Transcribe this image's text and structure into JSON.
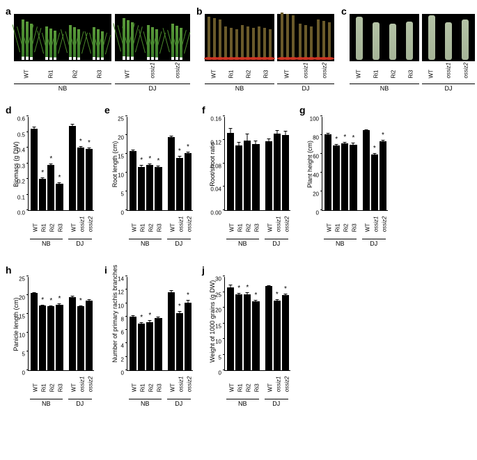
{
  "panels": {
    "a": {
      "label": "a"
    },
    "b": {
      "label": "b"
    },
    "c": {
      "label": "c"
    }
  },
  "genotypes_nb": [
    "WT",
    "Ri1",
    "Ri2",
    "Ri3"
  ],
  "genotypes_dj": [
    "WT",
    "ossiz1",
    "ossiz2"
  ],
  "groups": {
    "nb": "NB",
    "dj": "DJ"
  },
  "charts": {
    "d": {
      "label": "d",
      "ylabel": "Biomass (g DW)",
      "ymax": 0.6,
      "ystep": 0.1,
      "values": [
        0.52,
        0.2,
        0.29,
        0.17,
        0.54,
        0.4,
        0.39
      ],
      "errors": [
        0.015,
        0.01,
        0.01,
        0.01,
        0.01,
        0.01,
        0.01
      ],
      "sig": [
        false,
        true,
        true,
        true,
        false,
        true,
        true
      ]
    },
    "e": {
      "label": "e",
      "ylabel": "Root length (cm)",
      "ymax": 25,
      "ystep": 5,
      "values": [
        15.8,
        11.5,
        12.0,
        11.5,
        19.5,
        13.9,
        15.1
      ],
      "errors": [
        0.4,
        0.5,
        0.4,
        0.4,
        0.4,
        0.5,
        0.5
      ],
      "sig": [
        false,
        true,
        true,
        true,
        false,
        true,
        true
      ]
    },
    "f": {
      "label": "f",
      "ylabel": "Root/shoot ratio",
      "ymax": 0.16,
      "ystep": 0.04,
      "values": [
        0.131,
        0.11,
        0.119,
        0.113,
        0.117,
        0.13,
        0.128
      ],
      "errors": [
        0.009,
        0.006,
        0.011,
        0.006,
        0.005,
        0.006,
        0.007
      ],
      "sig": [
        false,
        false,
        false,
        false,
        false,
        false,
        false
      ]
    },
    "g": {
      "label": "g",
      "ylabel": "Plant height (cm)",
      "ymax": 100,
      "ystep": 20,
      "values": [
        81,
        69,
        71,
        70,
        85,
        59,
        73
      ],
      "errors": [
        1.0,
        1.5,
        1.5,
        1.5,
        1.0,
        1.5,
        1.5
      ],
      "sig": [
        false,
        true,
        true,
        true,
        false,
        true,
        true
      ]
    },
    "h": {
      "label": "h",
      "ylabel": "Panicle length (cm)",
      "ymax": 25,
      "ystep": 5,
      "values": [
        20.5,
        17.2,
        17.0,
        17.5,
        19.5,
        17.0,
        18.6
      ],
      "errors": [
        0.3,
        0.3,
        0.3,
        0.3,
        0.3,
        0.3,
        0.3
      ],
      "sig": [
        false,
        true,
        true,
        true,
        false,
        true,
        false
      ]
    },
    "i": {
      "label": "i",
      "ylabel": "Number of primary rachis branches",
      "ymax": 14,
      "ystep": 2,
      "values": [
        8.0,
        7.0,
        7.2,
        7.8,
        11.6,
        8.5,
        10.1
      ],
      "errors": [
        0.2,
        0.2,
        0.3,
        0.2,
        0.3,
        0.3,
        0.4
      ],
      "sig": [
        false,
        true,
        true,
        false,
        false,
        true,
        true
      ]
    },
    "j": {
      "label": "j",
      "ylabel": "Weight of 1000 grains (g DW)",
      "ymax": 30,
      "ystep": 5,
      "values": [
        26.5,
        24.2,
        24.3,
        22.0,
        26.8,
        22.3,
        24.0
      ],
      "errors": [
        0.8,
        0.5,
        0.6,
        0.5,
        0.3,
        0.4,
        0.4
      ],
      "sig": [
        false,
        true,
        true,
        true,
        false,
        true,
        true
      ]
    }
  },
  "photo_heights": {
    "a_nb": [
      58,
      48,
      50,
      47
    ],
    "a_dj": [
      60,
      50,
      52
    ],
    "b_nb": [
      62,
      48,
      50,
      48
    ],
    "b_dj": [
      68,
      52,
      58
    ],
    "c_nb": [
      62,
      54,
      52,
      55
    ],
    "c_dj": [
      64,
      54,
      58
    ]
  },
  "styling": {
    "bar_color": "#000000",
    "bg_color": "#ffffff",
    "panel_bg": "#000000",
    "label_fontsize": 14,
    "axis_fontsize": 9,
    "tick_fontsize": 8
  }
}
